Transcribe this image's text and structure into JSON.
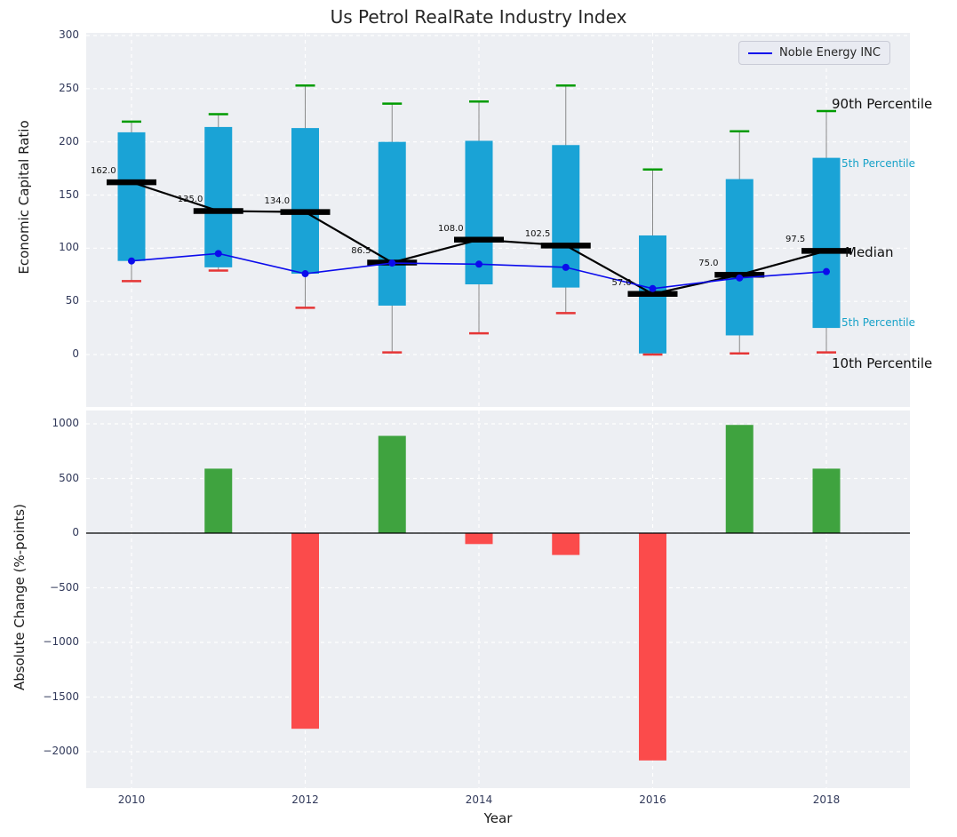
{
  "title": "Us Petrol RealRate Industry Index",
  "legend": {
    "label": "Noble Energy INC"
  },
  "annotations": {
    "p90": "90th Percentile",
    "p75": "5th Percentile",
    "median": "Median",
    "p25": "5th Percentile",
    "p10": "10th Percentile"
  },
  "colors": {
    "box": "#1aa3d6",
    "whisker": "#8a8a8a",
    "cap_high": "#009b00",
    "cap_low": "#e53535",
    "median": "#000000",
    "series_line": "#0b0bec",
    "bar_positive": "#3fa33f",
    "bar_negative": "#fb4b4b",
    "grid": "#ffffff",
    "panel_bg": "#edeff3",
    "tick_color": "#31395a",
    "annotation_cyan": "#17a2c8"
  },
  "chart_data": [
    {
      "type": "box-with-percentiles",
      "title": "Us Petrol RealRate Industry Index",
      "ylabel": "Economic Capital Ratio",
      "ylim": [
        -50,
        300
      ],
      "yticks": [
        300,
        250,
        200,
        150,
        100,
        50,
        0
      ],
      "xticks": [
        2010,
        2012,
        2014,
        2016,
        2018
      ],
      "years": [
        2010,
        2011,
        2012,
        2013,
        2014,
        2015,
        2016,
        2017,
        2018
      ],
      "p90": [
        219,
        226,
        253,
        236,
        238,
        253,
        174,
        210,
        229
      ],
      "p75": [
        209,
        214,
        213,
        200,
        201,
        197,
        112,
        165,
        185
      ],
      "median": [
        162,
        135,
        134,
        86.5,
        108,
        102.5,
        57,
        75,
        97.5
      ],
      "p25": [
        88,
        82,
        76,
        46,
        66,
        63,
        1,
        18,
        25
      ],
      "p10": [
        69,
        79,
        44,
        2,
        20,
        39,
        0,
        1,
        2
      ],
      "median_labels": [
        "162.0",
        "135.0",
        "134.0",
        "86.5",
        "108.0",
        "102.5",
        "57.0",
        "75.0",
        "97.5"
      ],
      "series": [
        {
          "name": "Noble Energy INC",
          "values": [
            88,
            95,
            76,
            86,
            85,
            82,
            62,
            72,
            78
          ]
        }
      ],
      "legend_position": "upper right",
      "grid": true
    },
    {
      "type": "bar",
      "ylabel": "Absolute Change (%-points)",
      "xlabel": "Year",
      "ylim": [
        -2200,
        1100
      ],
      "yticks": [
        1000,
        500,
        0,
        -500,
        -1000,
        -1500,
        -2000
      ],
      "xticks": [
        2010,
        2012,
        2014,
        2016,
        2018
      ],
      "years": [
        2010,
        2011,
        2012,
        2013,
        2014,
        2015,
        2016,
        2017,
        2018
      ],
      "values": [
        null,
        590,
        -1790,
        890,
        -100,
        -200,
        -2080,
        990,
        590
      ],
      "grid": true
    }
  ]
}
